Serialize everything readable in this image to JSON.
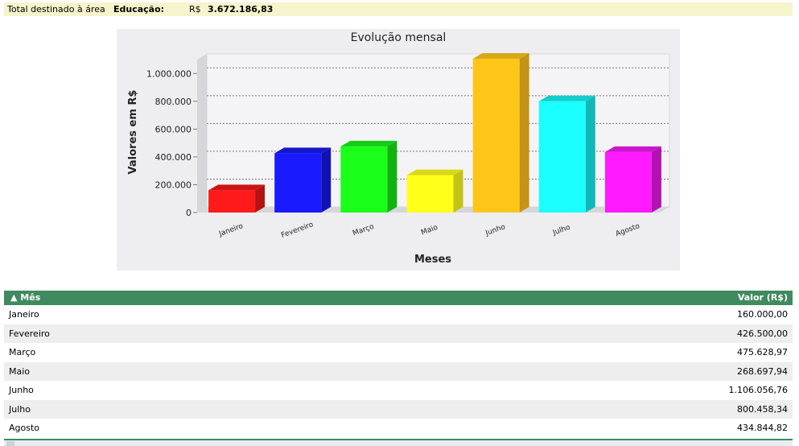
{
  "summary": {
    "label": "Total destinado à área",
    "area": "Educação:",
    "currency": "R$",
    "amount": "3.672.186,83"
  },
  "chart_data": {
    "type": "bar",
    "title": "Evolução mensal",
    "xlabel": "Meses",
    "ylabel": "Valores em R$",
    "categories": [
      "Janeiro",
      "Fevereiro",
      "Março",
      "Maio",
      "Junho",
      "Julho",
      "Agosto"
    ],
    "values": [
      160000.0,
      426500.0,
      475628.97,
      268697.94,
      1106056.76,
      800458.34,
      434844.82
    ],
    "colors": [
      "#ff1a1a",
      "#1a1aff",
      "#1aff1a",
      "#ffff1a",
      "#ffc61a",
      "#1affff",
      "#ff1aff"
    ],
    "side_colors": [
      "#b21212",
      "#1212b2",
      "#12b212",
      "#c4c416",
      "#c49416",
      "#12b8b8",
      "#b212b2"
    ],
    "top_colors": [
      "#cc1515",
      "#1515cc",
      "#15cc15",
      "#d9d917",
      "#d9a817",
      "#15cccc",
      "#cc15cc"
    ],
    "ylim": [
      0,
      1100000
    ],
    "yticks": [
      0,
      200000,
      400000,
      600000,
      800000,
      1000000
    ],
    "ytick_labels": [
      "0",
      "200.000",
      "400.000",
      "600.000",
      "800.000",
      "1.000.000"
    ],
    "grid": true,
    "legend": "none"
  },
  "table": {
    "headers": {
      "month": "▲ Mês",
      "value": "Valor (R$)"
    },
    "rows": [
      {
        "month": "Janeiro",
        "value": "160.000,00"
      },
      {
        "month": "Fevereiro",
        "value": "426.500,00"
      },
      {
        "month": "Março",
        "value": "475.628,97"
      },
      {
        "month": "Maio",
        "value": "268.697,94"
      },
      {
        "month": "Junho",
        "value": "1.106.056,76"
      },
      {
        "month": "Julho",
        "value": "800.458,34"
      },
      {
        "month": "Agosto",
        "value": "434.844,82"
      }
    ]
  }
}
